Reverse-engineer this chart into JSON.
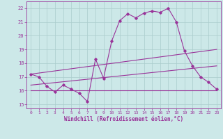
{
  "xlabel": "Windchill (Refroidissement éolien,°C)",
  "xlim": [
    -0.5,
    23.5
  ],
  "ylim": [
    14.7,
    22.5
  ],
  "yticks": [
    15,
    16,
    17,
    18,
    19,
    20,
    21,
    22
  ],
  "xticks": [
    0,
    1,
    2,
    3,
    4,
    5,
    6,
    7,
    8,
    9,
    10,
    11,
    12,
    13,
    14,
    15,
    16,
    17,
    18,
    19,
    20,
    21,
    22,
    23
  ],
  "background_color": "#cce8e8",
  "grid_color": "#aacccc",
  "line_color": "#993399",
  "series1_x": [
    0,
    1,
    2,
    3,
    4,
    5,
    6,
    7,
    8,
    9,
    10,
    11,
    12,
    13,
    14,
    15,
    16,
    17,
    18,
    19,
    20,
    21,
    22,
    23
  ],
  "series1_y": [
    17.2,
    17.0,
    16.3,
    15.9,
    16.4,
    16.1,
    15.8,
    15.2,
    18.3,
    16.9,
    19.6,
    21.1,
    21.6,
    21.3,
    21.65,
    21.8,
    21.7,
    22.0,
    21.0,
    18.9,
    17.8,
    17.0,
    16.6,
    16.1
  ],
  "series2_x": [
    0,
    23
  ],
  "series2_y": [
    17.2,
    19.0
  ],
  "series3_x": [
    0,
    23
  ],
  "series3_y": [
    16.4,
    17.8
  ],
  "series4_x": [
    0,
    23
  ],
  "series4_y": [
    16.0,
    16.0
  ]
}
